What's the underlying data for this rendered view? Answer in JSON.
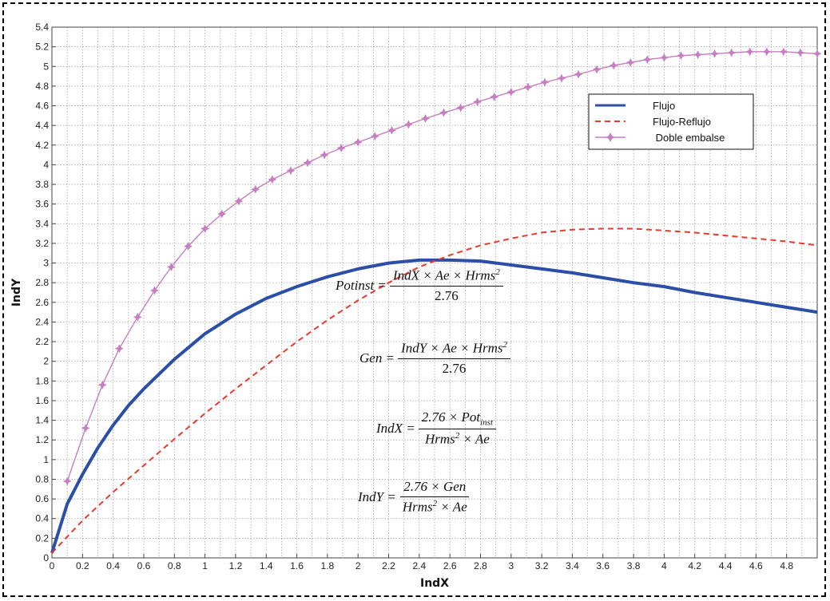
{
  "chart_data": {
    "type": "line",
    "xlabel": "IndX",
    "ylabel": "IndY",
    "xlim": [
      0,
      5
    ],
    "ylim": [
      0,
      5.4
    ],
    "xticks": [
      "0",
      "0.2",
      "0.4",
      "0.6",
      "0.8",
      "1",
      "1.2",
      "1.4",
      "1.6",
      "1.8",
      "2",
      "2.2",
      "2.4",
      "2.6",
      "2.8",
      "3",
      "3.2",
      "3.4",
      "3.6",
      "3.8",
      "4",
      "4.2",
      "4.4",
      "4.6",
      "4.8"
    ],
    "yticks": [
      "0",
      "0.2",
      "0.4",
      "0.6",
      "0.8",
      "1",
      "1.2",
      "1.4",
      "1.6",
      "1.8",
      "2",
      "2.2",
      "2.4",
      "2.6",
      "2.8",
      "3",
      "3.2",
      "3.4",
      "3.6",
      "3.8",
      "4",
      "4.2",
      "4.4",
      "4.6",
      "4.8",
      "5",
      "5.2",
      "5.4"
    ],
    "grid": true,
    "legend_position": "top-right",
    "series": [
      {
        "name": "Flujo",
        "color": "#2b4ea8",
        "style": "solid",
        "x": [
          0,
          0.1,
          0.2,
          0.3,
          0.4,
          0.5,
          0.6,
          0.8,
          1.0,
          1.2,
          1.4,
          1.6,
          1.8,
          2.0,
          2.2,
          2.4,
          2.6,
          2.8,
          3.0,
          3.2,
          3.4,
          3.6,
          3.8,
          4.0,
          4.2,
          4.4,
          4.6,
          4.8,
          5.0
        ],
        "y": [
          0.05,
          0.55,
          0.85,
          1.12,
          1.35,
          1.55,
          1.72,
          2.02,
          2.28,
          2.48,
          2.64,
          2.76,
          2.86,
          2.94,
          3.0,
          3.03,
          3.03,
          3.02,
          2.98,
          2.94,
          2.9,
          2.85,
          2.8,
          2.76,
          2.7,
          2.65,
          2.6,
          2.55,
          2.5
        ]
      },
      {
        "name": "Flujo-Reflujo",
        "color": "#e83a2e",
        "style": "dashed",
        "x": [
          0,
          0.2,
          0.4,
          0.6,
          0.8,
          1.0,
          1.2,
          1.4,
          1.6,
          1.8,
          2.0,
          2.2,
          2.4,
          2.6,
          2.8,
          3.0,
          3.2,
          3.4,
          3.6,
          3.8,
          4.0,
          4.2,
          4.4,
          4.6,
          4.8,
          5.0
        ],
        "y": [
          0.05,
          0.38,
          0.67,
          0.94,
          1.21,
          1.47,
          1.72,
          1.96,
          2.2,
          2.42,
          2.62,
          2.8,
          2.96,
          3.08,
          3.18,
          3.25,
          3.31,
          3.34,
          3.35,
          3.35,
          3.33,
          3.31,
          3.28,
          3.25,
          3.22,
          3.18
        ]
      },
      {
        "name": "Doble embalse",
        "color": "#c77ec0",
        "style": "solid-markers",
        "x": [
          0.1,
          0.22,
          0.33,
          0.44,
          0.56,
          0.67,
          0.78,
          0.89,
          1.0,
          1.11,
          1.22,
          1.33,
          1.44,
          1.56,
          1.67,
          1.78,
          1.89,
          2.0,
          2.11,
          2.22,
          2.33,
          2.44,
          2.56,
          2.67,
          2.78,
          2.89,
          3.0,
          3.11,
          3.22,
          3.33,
          3.44,
          3.56,
          3.67,
          3.78,
          3.89,
          4.0,
          4.11,
          4.22,
          4.33,
          4.44,
          4.56,
          4.67,
          4.78,
          4.89,
          5.0
        ],
        "y": [
          0.78,
          1.32,
          1.76,
          2.13,
          2.45,
          2.72,
          2.96,
          3.17,
          3.35,
          3.5,
          3.63,
          3.75,
          3.85,
          3.94,
          4.02,
          4.1,
          4.17,
          4.23,
          4.29,
          4.35,
          4.41,
          4.47,
          4.53,
          4.58,
          4.64,
          4.69,
          4.74,
          4.79,
          4.84,
          4.88,
          4.92,
          4.97,
          5.01,
          5.04,
          5.07,
          5.09,
          5.11,
          5.12,
          5.13,
          5.14,
          5.15,
          5.15,
          5.15,
          5.14,
          5.13
        ]
      }
    ],
    "legend": [
      "Flujo",
      "Flujo-Reflujo",
      " Doble embalse"
    ]
  },
  "equations": {
    "potinst": {
      "lhs": "Potinst =",
      "num_a": "IndX × Ae × Hrms",
      "num_sup": "2",
      "den": "2.76"
    },
    "gen": {
      "lhs": "Gen =",
      "num_a": "IndY × Ae × Hrms",
      "num_sup": "2",
      "den": "2.76"
    },
    "indx": {
      "lhs": "IndX =",
      "num_a": "2.76 × Pot",
      "num_sub": "inst",
      "den_a": "Hrms",
      "den_sup": "2",
      "den_b": " × Ae"
    },
    "indy": {
      "lhs": "IndY =",
      "num_a": "2.76 × Gen",
      "den_a": "Hrms",
      "den_sup": "2",
      "den_b": " × Ae"
    }
  }
}
